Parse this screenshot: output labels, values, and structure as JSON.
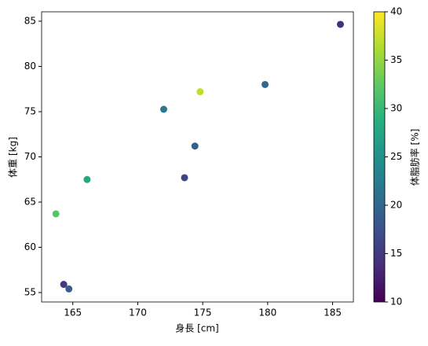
{
  "chart_data": {
    "type": "scatter",
    "xlabel": "身長 [cm]",
    "ylabel": "体重 [kg]",
    "x": [
      185.6,
      179.8,
      174.8,
      172.0,
      174.4,
      173.6,
      166.1,
      163.7,
      164.3,
      164.7
    ],
    "values": [
      84.65,
      78.0,
      77.2,
      75.26,
      71.2,
      67.7,
      67.5,
      63.7,
      55.9,
      55.4
    ],
    "color_values": [
      14,
      20,
      37,
      22,
      19,
      16,
      28,
      32,
      15,
      19
    ],
    "colormap": "viridis",
    "xlim": [
      162.6,
      186.6
    ],
    "xticks": [
      165,
      170,
      175,
      180,
      185
    ],
    "ylim": [
      53.96,
      86.04
    ],
    "yticks": [
      55,
      60,
      65,
      70,
      75,
      80,
      85
    ],
    "colorbar_label": "体脂肪率 [%]",
    "clim": [
      10,
      40
    ],
    "cticks": [
      10,
      15,
      20,
      25,
      30,
      35,
      40
    ]
  }
}
